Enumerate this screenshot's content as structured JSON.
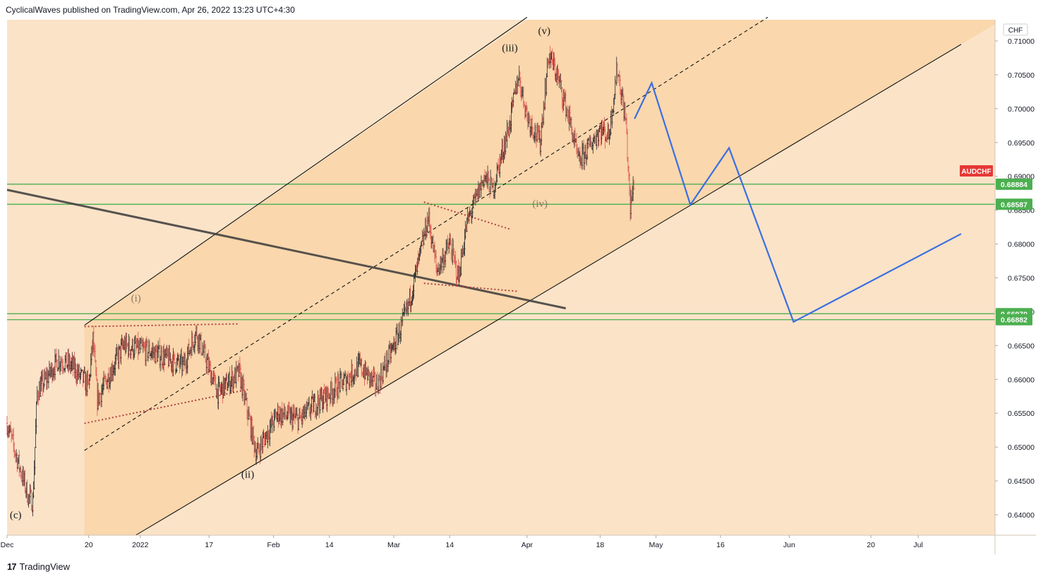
{
  "header": {
    "publish_text": "CyclicalWaves published on TradingView.com, Apr 26, 2022 13:23 UTC+4:30"
  },
  "footer": {
    "brand": "TradingView"
  },
  "colors": {
    "background": "#fbe3c8",
    "channel_fill": "#fad7ad",
    "candle_up": "#2a2a2a",
    "candle_down": "#d9534f",
    "support": "#4caf50",
    "projection": "#3a6fe0",
    "symbol_badge": "#e53935"
  },
  "chart_data": {
    "type": "candlestick",
    "symbol": "AUDCHF",
    "currency": "CHF",
    "y_range": [
      0.637,
      0.7135
    ],
    "y_ticks": [
      "0.71000",
      "0.70500",
      "0.70000",
      "0.69500",
      "0.69000",
      "0.68500",
      "0.68000",
      "0.67500",
      "0.67000",
      "0.66500",
      "0.66000",
      "0.65500",
      "0.65000",
      "0.64500",
      "0.64000"
    ],
    "x_ticks": [
      "Dec",
      "20",
      "2022",
      "17",
      "Feb",
      "14",
      "Mar",
      "14",
      "Apr",
      "18",
      "May",
      "16",
      "Jun",
      "20",
      "Jul"
    ],
    "support_levels": [
      "0.68884",
      "0.68587",
      "0.66970",
      "0.66882"
    ],
    "wave_labels": [
      "(c)",
      "(i)",
      "(ii)",
      "(iii)",
      "(iv)",
      "(v)"
    ],
    "price_path": [
      [
        "2021-12-01",
        0.6535
      ],
      [
        "2021-12-03",
        0.649
      ],
      [
        "2021-12-06",
        0.6425
      ],
      [
        "2021-12-07",
        0.642
      ],
      [
        "2021-12-08",
        0.658
      ],
      [
        "2021-12-13",
        0.663
      ],
      [
        "2021-12-16",
        0.662
      ],
      [
        "2021-12-20",
        0.659
      ],
      [
        "2021-12-21",
        0.666
      ],
      [
        "2021-12-22",
        0.657
      ],
      [
        "2021-12-28",
        0.665
      ],
      [
        "2022-01-04",
        0.664
      ],
      [
        "2022-01-11",
        0.662
      ],
      [
        "2022-01-14",
        0.667
      ],
      [
        "2022-01-19",
        0.658
      ],
      [
        "2022-01-24",
        0.661
      ],
      [
        "2022-01-28",
        0.649
      ],
      [
        "2022-02-02",
        0.655
      ],
      [
        "2022-02-07",
        0.654
      ],
      [
        "2022-02-10",
        0.656
      ],
      [
        "2022-02-14",
        0.658
      ],
      [
        "2022-02-18",
        0.66
      ],
      [
        "2022-02-21",
        0.662
      ],
      [
        "2022-02-25",
        0.659
      ],
      [
        "2022-03-01",
        0.665
      ],
      [
        "2022-03-04",
        0.67
      ],
      [
        "2022-03-07",
        0.678
      ],
      [
        "2022-03-09",
        0.684
      ],
      [
        "2022-03-11",
        0.676
      ],
      [
        "2022-03-14",
        0.68
      ],
      [
        "2022-03-16",
        0.675
      ],
      [
        "2022-03-18",
        0.683
      ],
      [
        "2022-03-22",
        0.69
      ],
      [
        "2022-03-24",
        0.688
      ],
      [
        "2022-03-28",
        0.698
      ],
      [
        "2022-03-30",
        0.705
      ],
      [
        "2022-04-01",
        0.699
      ],
      [
        "2022-04-04",
        0.695
      ],
      [
        "2022-04-06",
        0.708
      ],
      [
        "2022-04-08",
        0.705
      ],
      [
        "2022-04-11",
        0.698
      ],
      [
        "2022-04-13",
        0.692
      ],
      [
        "2022-04-15",
        0.694
      ],
      [
        "2022-04-18",
        0.697
      ],
      [
        "2022-04-20",
        0.696
      ],
      [
        "2022-04-22",
        0.706
      ],
      [
        "2022-04-24",
        0.698
      ],
      [
        "2022-04-25",
        0.685
      ],
      [
        "2022-04-26",
        0.69
      ]
    ],
    "projection_path": [
      [
        "2022-04-26",
        0.6985
      ],
      [
        "2022-04-30",
        0.7038
      ],
      [
        "2022-05-09",
        0.6858
      ],
      [
        "2022-05-18",
        0.6942
      ],
      [
        "2022-06-02",
        0.6685
      ],
      [
        "2022-07-11",
        0.6815
      ]
    ],
    "trend_lines": [
      {
        "style": "solid",
        "color": "#000000",
        "start": [
          "2021-12-19",
          0.668
        ],
        "end": [
          "2022-04-01",
          0.7135
        ]
      },
      {
        "style": "solid",
        "color": "#000000",
        "start": [
          "2021-12-31",
          0.637
        ],
        "end": [
          "2022-07-11",
          0.7095
        ]
      },
      {
        "style": "dashed",
        "color": "#000000",
        "start": [
          "2021-12-19",
          0.6495
        ],
        "end": [
          "2022-05-27",
          0.7135
        ]
      },
      {
        "style": "solid",
        "color": "#3a3a3a",
        "start": [
          "2021-12-01",
          0.688
        ],
        "end": [
          "2022-04-10",
          0.6705
        ]
      },
      {
        "style": "dotted",
        "color": "#b04040",
        "start": [
          "2021-12-19",
          0.6678
        ],
        "end": [
          "2022-01-24",
          0.6682
        ]
      },
      {
        "style": "dotted",
        "color": "#b04040",
        "start": [
          "2021-12-19",
          0.6535
        ],
        "end": [
          "2022-01-26",
          0.6585
        ]
      },
      {
        "style": "dotted",
        "color": "#b04040",
        "start": [
          "2022-03-08",
          0.6862
        ],
        "end": [
          "2022-03-28",
          0.6822
        ]
      },
      {
        "style": "dotted",
        "color": "#b04040",
        "start": [
          "2022-03-08",
          0.6742
        ],
        "end": [
          "2022-03-30",
          0.673
        ]
      }
    ]
  }
}
